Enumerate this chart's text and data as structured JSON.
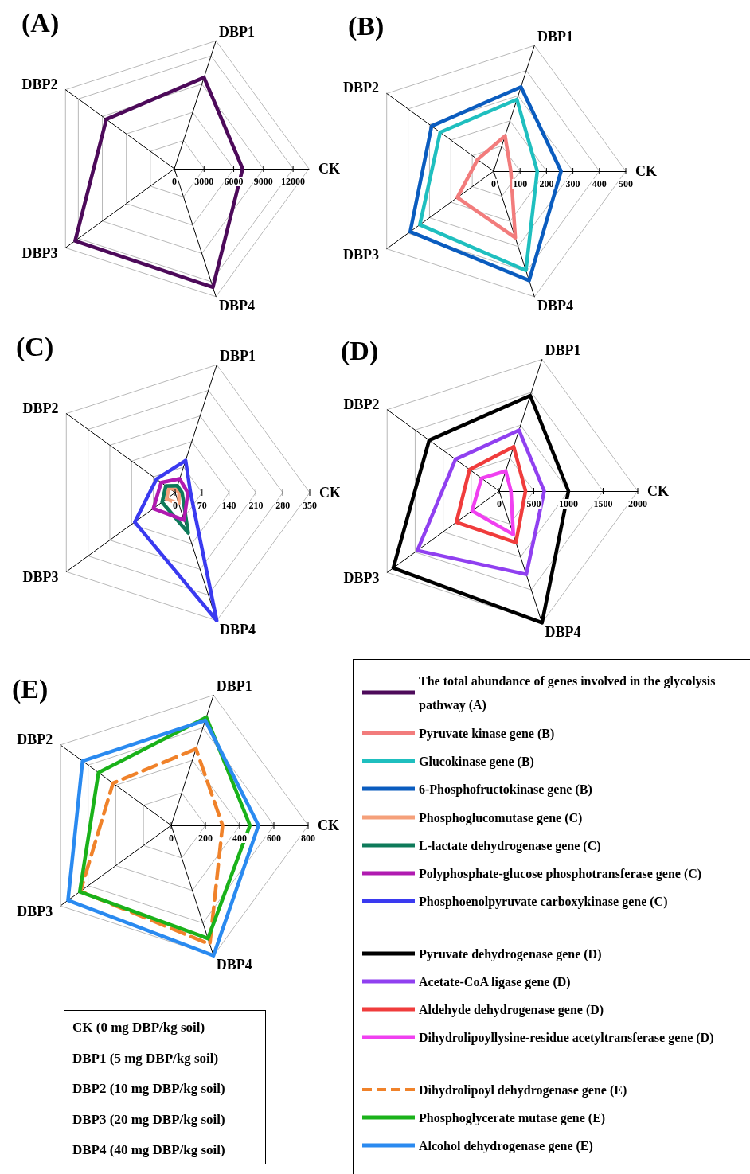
{
  "chart_data": [
    {
      "type": "radar",
      "title": "(A)",
      "categories": [
        "DBP1",
        "CK",
        "DBP4",
        "DBP3",
        "DBP2"
      ],
      "ylim": [
        0,
        13600
      ],
      "yticks": [
        0,
        3000,
        6000,
        9000,
        12000
      ],
      "grid": true,
      "legend": "bottom right",
      "marker": "none",
      "series": [
        {
          "name": "The total abundance of genes involved in the glycolysis pathway (A)",
          "color": "#4d0a5a",
          "values": [
            9700,
            6900,
            12600,
            12400,
            8500
          ]
        }
      ]
    },
    {
      "type": "radar",
      "title": "(B)",
      "categories": [
        "DBP1",
        "CK",
        "DBP4",
        "DBP3",
        "DBP2"
      ],
      "ylim": [
        0,
        500
      ],
      "yticks": [
        0,
        100,
        200,
        300,
        400,
        500
      ],
      "grid": true,
      "legend": "bottom left",
      "marker": "none",
      "series": [
        {
          "name": "Pyruvate kinase gene (B)",
          "color": "#f27c7c",
          "values": [
            140,
            65,
            265,
            170,
            75
          ]
        },
        {
          "name": "Glucokinase gene (B)",
          "color": "#1fbfbf",
          "values": [
            285,
            165,
            395,
            345,
            250
          ]
        },
        {
          "name": "6-Phosphofructokinase gene (B)",
          "color": "#0a5cbf",
          "values": [
            335,
            255,
            435,
            390,
            290
          ]
        }
      ]
    },
    {
      "type": "radar",
      "title": "(C)",
      "categories": [
        "DBP1",
        "CK",
        "DBP4",
        "DBP3",
        "DBP2"
      ],
      "ylim": [
        0,
        350
      ],
      "yticks": [
        0,
        70,
        140,
        210,
        280,
        350
      ],
      "grid": true,
      "legend": "bottom right",
      "marker": "none",
      "series": [
        {
          "name": "Phosphoglucomutase gene (C)",
          "color": "#f5a07a",
          "values": [
            8,
            10,
            30,
            28,
            20
          ]
        },
        {
          "name": "L-lactate dehydrogenase gene (C)",
          "color": "#0e7a5a",
          "values": [
            19,
            18,
            110,
            42,
            30
          ]
        },
        {
          "name": "Polyphosphate-glucose phosphotransferase gene (C)",
          "color": "#b01ab0",
          "values": [
            38,
            33,
            75,
            70,
            45
          ]
        },
        {
          "name": "Phosphoenolpyruvate carboxykinase gene (C)",
          "color": "#3a3af0",
          "values": [
            88,
            40,
            350,
            130,
            60
          ]
        }
      ]
    },
    {
      "type": "radar",
      "title": "(D)",
      "categories": [
        "DBP1",
        "CK",
        "DBP4",
        "DBP3",
        "DBP2"
      ],
      "ylim": [
        0,
        2000
      ],
      "yticks": [
        0,
        500,
        1000,
        1500,
        2000
      ],
      "grid": true,
      "legend": "bottom",
      "marker": "none",
      "series": [
        {
          "name": "Pyruvate dehydrogenase gene (D)",
          "color": "#000000",
          "values": [
            1450,
            1000,
            2000,
            1890,
            1250
          ]
        },
        {
          "name": "Acetate-CoA ligase gene (D)",
          "color": "#9040f0",
          "values": [
            925,
            650,
            1265,
            1460,
            780
          ]
        },
        {
          "name": "Aldehyde dehydrogenase gene (D)",
          "color": "#f03c3c",
          "values": [
            675,
            380,
            780,
            765,
            530
          ]
        },
        {
          "name": "Dihydrolipoyllysine-residue acetyltransferase gene (D)",
          "color": "#f040f0",
          "values": [
            305,
            170,
            660,
            485,
            315
          ]
        }
      ]
    },
    {
      "type": "radar",
      "title": "(E)",
      "categories": [
        "DBP1",
        "CK",
        "DBP4",
        "DBP3",
        "DBP2"
      ],
      "ylim": [
        0,
        800
      ],
      "yticks": [
        0,
        200,
        400,
        600,
        800
      ],
      "grid": true,
      "legend": "bottom right",
      "marker": "none",
      "series": [
        {
          "name": "Dihydrolipoyl dehydrogenase gene (E)",
          "color": "#f0822a",
          "line_style": "dashed",
          "values": [
            470,
            300,
            730,
            655,
            420
          ]
        },
        {
          "name": "Phosphoglycerate mutase gene (E)",
          "color": "#1ab21a",
          "values": [
            665,
            460,
            695,
            660,
            525
          ]
        },
        {
          "name": "Alcohol dehydrogenase gene (E)",
          "color": "#2a8af0",
          "values": [
            645,
            510,
            800,
            745,
            640
          ]
        }
      ],
      "annotations": [
        "CK (0 mg DBP/kg soil)",
        "DBP1 (5 mg DBP/kg soil)",
        "DBP2 (10 mg DBP/kg soil)",
        "DBP3 (20 mg DBP/kg soil)",
        "DBP4 (40 mg DBP/kg soil)"
      ]
    }
  ]
}
